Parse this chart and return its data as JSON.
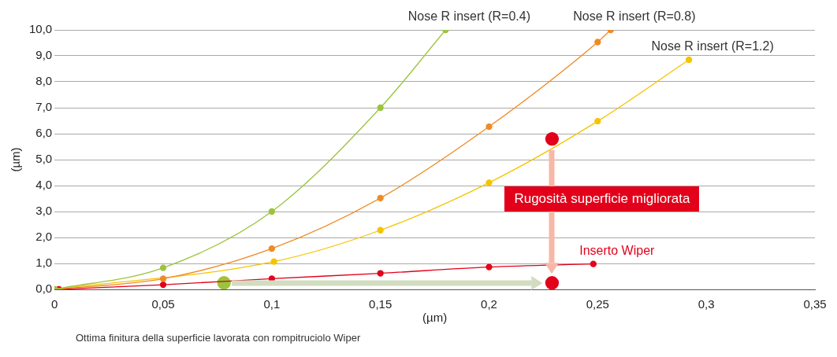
{
  "chart_data": {
    "type": "line",
    "xlabel": "(µm)",
    "ylabel": "(µm)",
    "xlim": [
      0,
      0.35
    ],
    "ylim": [
      0,
      10
    ],
    "xticks": [
      {
        "value": 0,
        "label": "0"
      },
      {
        "value": 0.05,
        "label": "0,05"
      },
      {
        "value": 0.1,
        "label": "0,1"
      },
      {
        "value": 0.15,
        "label": "0,15"
      },
      {
        "value": 0.2,
        "label": "0,2"
      },
      {
        "value": 0.25,
        "label": "0,25"
      },
      {
        "value": 0.3,
        "label": "0,3"
      },
      {
        "value": 0.35,
        "label": "0,35"
      }
    ],
    "yticks": [
      {
        "value": 0,
        "label": "0,0"
      },
      {
        "value": 1,
        "label": "1,0"
      },
      {
        "value": 2,
        "label": "2,0"
      },
      {
        "value": 3,
        "label": "3,0"
      },
      {
        "value": 4,
        "label": "4,0"
      },
      {
        "value": 5,
        "label": "5,0"
      },
      {
        "value": 6,
        "label": "6,0"
      },
      {
        "value": 7,
        "label": "7,0"
      },
      {
        "value": 8,
        "label": "8,0"
      },
      {
        "value": 9,
        "label": "9,0"
      },
      {
        "value": 10,
        "label": "10,0"
      }
    ],
    "grid": "y",
    "legend": false,
    "marker": "circle",
    "series": [
      {
        "name": "Nose R insert (R=0.4)",
        "color": "#9bc43c",
        "x": [
          0,
          0.05,
          0.1,
          0.15,
          0.18
        ],
        "values": [
          0,
          0.83,
          3.0,
          7.0,
          10
        ]
      },
      {
        "name": "Nose R insert (R=0.8)",
        "color": "#f08a24",
        "x": [
          0,
          0.05,
          0.1,
          0.15,
          0.2,
          0.25,
          0.256
        ],
        "values": [
          0,
          0.41,
          1.57,
          3.52,
          6.27,
          9.53,
          10
        ]
      },
      {
        "name": "Nose R insert (R=1.2)",
        "color": "#f5c400",
        "x": [
          0,
          0.101,
          0.15,
          0.2,
          0.25,
          0.292
        ],
        "values": [
          0,
          1.07,
          2.28,
          4.11,
          6.48,
          8.85
        ]
      },
      {
        "name": "Inserto Wiper",
        "color": "#e3001b",
        "x": [
          0.002,
          0.05,
          0.1,
          0.15,
          0.2,
          0.248
        ],
        "values": [
          0,
          0.18,
          0.41,
          0.62,
          0.86,
          0.98
        ]
      },
      {
        "type": "scatter",
        "color": "#e3001b",
        "x": [
          0.229,
          0.229
        ],
        "values": [
          5.8,
          0.25
        ]
      },
      {
        "type": "scatter",
        "color": "#9bc43c",
        "x": [
          0.078
        ],
        "values": [
          0.25
        ]
      }
    ],
    "annotations": [
      "Rugosità superficie migliorata",
      "Ottima finitura della superficie lavorata con rompitruciolo Wiper"
    ]
  }
}
